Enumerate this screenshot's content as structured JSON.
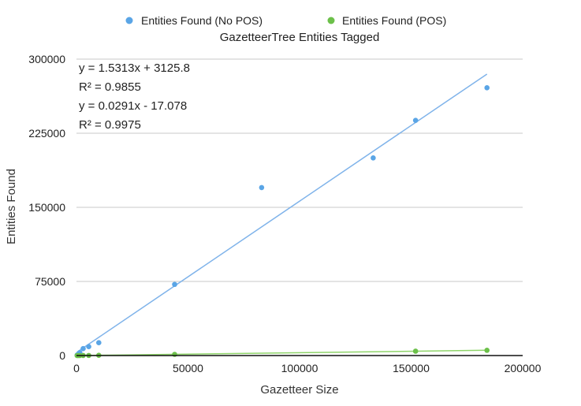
{
  "chart_data": {
    "type": "scatter",
    "title": "GazetteerTree Entities Tagged",
    "xlabel": "Gazetteer Size",
    "ylabel": "Entities Found",
    "xlim": [
      0,
      200000
    ],
    "ylim": [
      0,
      300000
    ],
    "x_ticks": [
      0,
      50000,
      100000,
      150000,
      200000
    ],
    "y_ticks": [
      0,
      75000,
      150000,
      225000,
      300000
    ],
    "grid": "horizontal",
    "legend_position": "top",
    "series": [
      {
        "name": "Entities Found (No POS)",
        "color": "#5aa5e6",
        "points": [
          [
            300,
            500
          ],
          [
            800,
            1500
          ],
          [
            1500,
            3000
          ],
          [
            3000,
            7000
          ],
          [
            5500,
            9000
          ],
          [
            10000,
            13000
          ],
          [
            44000,
            72000
          ],
          [
            83000,
            170000
          ],
          [
            133000,
            200000
          ],
          [
            152000,
            238000
          ],
          [
            184000,
            271000
          ]
        ],
        "trendline": {
          "slope": 1.5313,
          "intercept": 3125.8,
          "color": "#7fb3ea"
        }
      },
      {
        "name": "Entities Found (POS)",
        "color": "#6cc04a",
        "points": [
          [
            300,
            0
          ],
          [
            800,
            0
          ],
          [
            1500,
            0
          ],
          [
            3000,
            50
          ],
          [
            5500,
            100
          ],
          [
            10000,
            250
          ],
          [
            44000,
            1200
          ],
          [
            152000,
            4400
          ],
          [
            184000,
            5300
          ]
        ],
        "trendline": {
          "slope": 0.0291,
          "intercept": -17.078,
          "color": "#8fd46a"
        }
      }
    ],
    "annotations": [
      "y = 1.5313x + 3125.8",
      "R² = 0.9855",
      "y = 0.0291x - 17.078",
      "R² = 0.9975"
    ]
  }
}
